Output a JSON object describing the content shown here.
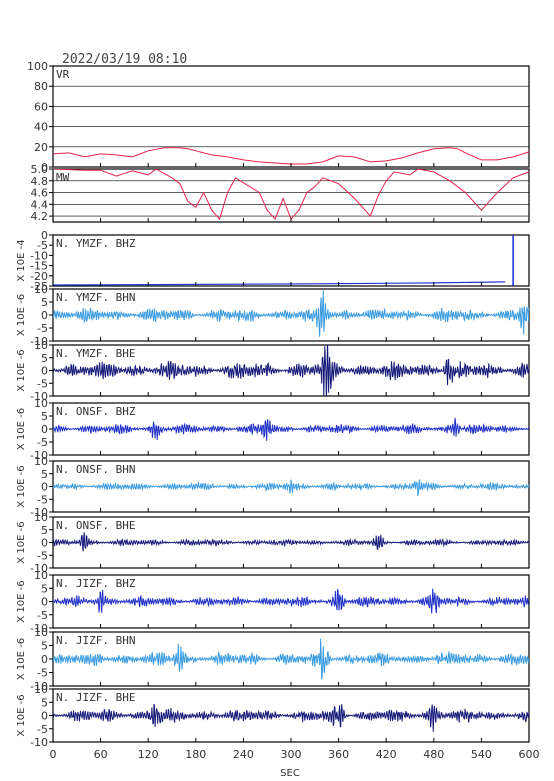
{
  "header": {
    "timestamp": "2022/03/19  08:10"
  },
  "chart_data": {
    "type": "line",
    "xlabel": "SEC",
    "xlim": [
      0,
      600
    ],
    "xticks": [
      0,
      60,
      120,
      180,
      240,
      300,
      360,
      420,
      480,
      540,
      600
    ],
    "panels": [
      {
        "id": "vr",
        "label": "VR",
        "ylabel": "",
        "color": "#e8214a",
        "ylim": [
          0,
          100
        ],
        "yticks": [
          0,
          20,
          40,
          60,
          80,
          100
        ],
        "grid": true,
        "x": [
          0,
          20,
          40,
          60,
          80,
          100,
          110,
          120,
          140,
          160,
          170,
          180,
          200,
          220,
          240,
          260,
          280,
          300,
          320,
          340,
          350,
          360,
          380,
          400,
          420,
          440,
          460,
          480,
          500,
          510,
          520,
          540,
          560,
          580,
          600
        ],
        "values": [
          13,
          14,
          10,
          13,
          12,
          10,
          13,
          16,
          19,
          19,
          18,
          16,
          12,
          10,
          7,
          5,
          4,
          3,
          3,
          5,
          8,
          11,
          10,
          5,
          6,
          9,
          14,
          18,
          19,
          18,
          14,
          7,
          7,
          10,
          15
        ]
      },
      {
        "id": "mw",
        "label": "MW",
        "ylabel": "",
        "color": "#e8214a",
        "ylim": [
          4.1,
          5.0
        ],
        "yticks": [
          4.2,
          4.4,
          4.6,
          4.8,
          5.0
        ],
        "grid": true,
        "x": [
          0,
          40,
          60,
          80,
          100,
          120,
          130,
          150,
          160,
          170,
          180,
          190,
          200,
          210,
          220,
          230,
          260,
          270,
          280,
          290,
          300,
          310,
          320,
          330,
          340,
          350,
          360,
          380,
          400,
          410,
          420,
          430,
          450,
          460,
          480,
          500,
          520,
          540,
          560,
          580,
          600
        ],
        "values": [
          5.0,
          4.98,
          4.98,
          4.88,
          4.97,
          4.9,
          5.0,
          4.85,
          4.75,
          4.45,
          4.35,
          4.6,
          4.3,
          4.15,
          4.6,
          4.85,
          4.6,
          4.3,
          4.15,
          4.5,
          4.15,
          4.3,
          4.6,
          4.7,
          4.85,
          4.8,
          4.75,
          4.5,
          4.2,
          4.55,
          4.8,
          4.95,
          4.9,
          5.0,
          4.95,
          4.8,
          4.6,
          4.3,
          4.6,
          4.85,
          4.95
        ]
      },
      {
        "id": "ymzf-bhz",
        "label": "N. YMZF. BHZ",
        "ylabel": "X 10E -4",
        "color": "#1f3dd6",
        "ylim": [
          -25,
          0
        ],
        "yticks": [
          -25,
          -20,
          -15,
          -10,
          -5,
          0
        ],
        "grid": false,
        "drift": {
          "x": [
            0,
            120,
            300,
            480,
            570
          ],
          "values": [
            -24.5,
            -24.3,
            -24.0,
            -23.5,
            -23.0
          ]
        },
        "spike": {
          "x": 580,
          "values": [
            -24.9,
            0
          ]
        }
      },
      {
        "id": "ymzf-bhn",
        "label": "N. YMZF. BHN",
        "ylabel": "X 10E -6",
        "color": "#3a9be0",
        "ylim": [
          -10,
          10
        ],
        "yticks": [
          -10,
          -5,
          0,
          5,
          10
        ],
        "grid": false,
        "noise": {
          "amplitude": 3.2,
          "events": [
            {
              "x": 340,
              "amplitude": 9.5
            },
            {
              "x": 595,
              "amplitude": 8
            }
          ]
        }
      },
      {
        "id": "ymzf-bhe",
        "label": "N. YMZF. BHE",
        "ylabel": "X 10E -6",
        "color": "#151a78",
        "ylim": [
          -10,
          10
        ],
        "yticks": [
          -10,
          -5,
          0,
          5,
          10
        ],
        "grid": false,
        "noise": {
          "amplitude": 4.2,
          "events": [
            {
              "x": 345,
              "amplitude": 9.5
            },
            {
              "x": 500,
              "amplitude": 7
            }
          ]
        }
      },
      {
        "id": "onsf-bhz",
        "label": "N. ONSF. BHZ",
        "ylabel": "X 10E -6",
        "color": "#1f2fc7",
        "ylim": [
          -10,
          10
        ],
        "yticks": [
          -10,
          -5,
          0,
          5,
          10
        ],
        "grid": false,
        "noise": {
          "amplitude": 2.2,
          "events": [
            {
              "x": 130,
              "amplitude": 4
            },
            {
              "x": 270,
              "amplitude": 3.5
            },
            {
              "x": 505,
              "amplitude": 4.5
            }
          ]
        }
      },
      {
        "id": "onsf-bhn",
        "label": "N. ONSF. BHN",
        "ylabel": "X 10E -6",
        "color": "#3a9be0",
        "ylim": [
          -10,
          10
        ],
        "yticks": [
          -10,
          -5,
          0,
          5,
          10
        ],
        "grid": false,
        "noise": {
          "amplitude": 1.8,
          "events": [
            {
              "x": 300,
              "amplitude": 3
            },
            {
              "x": 460,
              "amplitude": 3
            }
          ]
        }
      },
      {
        "id": "onsf-bhe",
        "label": "N. ONSF. BHE",
        "ylabel": "X 10E -6",
        "color": "#151a78",
        "ylim": [
          -10,
          10
        ],
        "yticks": [
          -10,
          -5,
          0,
          5,
          10
        ],
        "grid": false,
        "noise": {
          "amplitude": 1.6,
          "events": [
            {
              "x": 40,
              "amplitude": 3.5
            },
            {
              "x": 410,
              "amplitude": 3
            }
          ]
        }
      },
      {
        "id": "jizf-bhz",
        "label": "N. JIZF. BHZ",
        "ylabel": "X 10E -6",
        "color": "#1f2fc7",
        "ylim": [
          -10,
          10
        ],
        "yticks": [
          -10,
          -5,
          0,
          5,
          10
        ],
        "grid": false,
        "noise": {
          "amplitude": 2.4,
          "events": [
            {
              "x": 60,
              "amplitude": 4
            },
            {
              "x": 360,
              "amplitude": 4
            },
            {
              "x": 480,
              "amplitude": 4
            }
          ]
        }
      },
      {
        "id": "jizf-bhn",
        "label": "N. JIZF. BHN",
        "ylabel": "X 10E -6",
        "color": "#3a9be0",
        "ylim": [
          -10,
          10
        ],
        "yticks": [
          -10,
          -5,
          0,
          5,
          10
        ],
        "grid": false,
        "noise": {
          "amplitude": 3.0,
          "events": [
            {
              "x": 340,
              "amplitude": 7
            },
            {
              "x": 160,
              "amplitude": 4.5
            }
          ]
        }
      },
      {
        "id": "jizf-bhe",
        "label": "N. JIZF. BHE",
        "ylabel": "X 10E -6",
        "color": "#151a78",
        "ylim": [
          -10,
          10
        ],
        "yticks": [
          -10,
          -5,
          0,
          5,
          10
        ],
        "grid": false,
        "noise": {
          "amplitude": 3.0,
          "events": [
            {
              "x": 130,
              "amplitude": 5
            },
            {
              "x": 360,
              "amplitude": 5
            },
            {
              "x": 480,
              "amplitude": 4.5
            }
          ]
        }
      }
    ]
  }
}
